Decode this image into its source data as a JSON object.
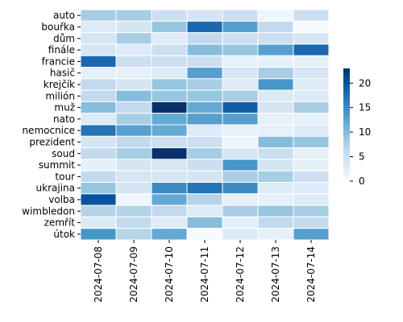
{
  "chart_data": {
    "type": "heatmap",
    "title": "",
    "xlabel": "",
    "ylabel": "",
    "x": [
      "2024-07-08",
      "2024-07-09",
      "2024-07-10",
      "2024-07-11",
      "2024-07-12",
      "2024-07-13",
      "2024-07-14"
    ],
    "y": [
      "auto",
      "bouřka",
      "dům",
      "finále",
      "francie",
      "hasič",
      "krejčík",
      "milión",
      "muž",
      "nato",
      "nemocnice",
      "prezident",
      "soud",
      "summit",
      "tour",
      "ukrajina",
      "volba",
      "wimbledon",
      "zemřít",
      "útok"
    ],
    "values": [
      [
        8,
        8,
        5,
        4,
        5,
        1,
        5
      ],
      [
        3,
        4,
        9,
        18,
        13,
        6,
        0
      ],
      [
        4,
        8,
        3,
        6,
        5,
        5,
        4
      ],
      [
        4,
        3,
        5,
        10,
        9,
        13,
        18
      ],
      [
        18,
        5,
        5,
        5,
        2,
        2,
        2
      ],
      [
        2,
        2,
        3,
        13,
        4,
        8,
        4
      ],
      [
        6,
        4,
        9,
        8,
        3,
        14,
        3
      ],
      [
        6,
        10,
        9,
        9,
        8,
        3,
        3
      ],
      [
        10,
        6,
        23,
        12,
        19,
        4,
        8
      ],
      [
        3,
        8,
        12,
        13,
        13,
        2,
        2
      ],
      [
        17,
        13,
        12,
        3,
        2,
        2,
        3
      ],
      [
        4,
        6,
        5,
        5,
        1,
        10,
        9
      ],
      [
        6,
        8,
        25,
        8,
        4,
        5,
        2
      ],
      [
        2,
        4,
        4,
        5,
        14,
        4,
        2
      ],
      [
        6,
        4,
        4,
        4,
        8,
        8,
        5
      ],
      [
        9,
        4,
        15,
        17,
        15,
        3,
        3
      ],
      [
        20,
        1,
        12,
        7,
        2,
        2,
        3
      ],
      [
        7,
        7,
        6,
        3,
        8,
        9,
        8
      ],
      [
        3,
        6,
        3,
        10,
        2,
        6,
        6
      ],
      [
        14,
        7,
        12,
        0,
        3,
        2,
        13
      ]
    ],
    "colormap": "Blues",
    "vmin": 0,
    "vmax": 23,
    "colorbar_ticks": [
      0,
      5,
      10,
      15,
      20
    ],
    "grid_lines": "white"
  }
}
